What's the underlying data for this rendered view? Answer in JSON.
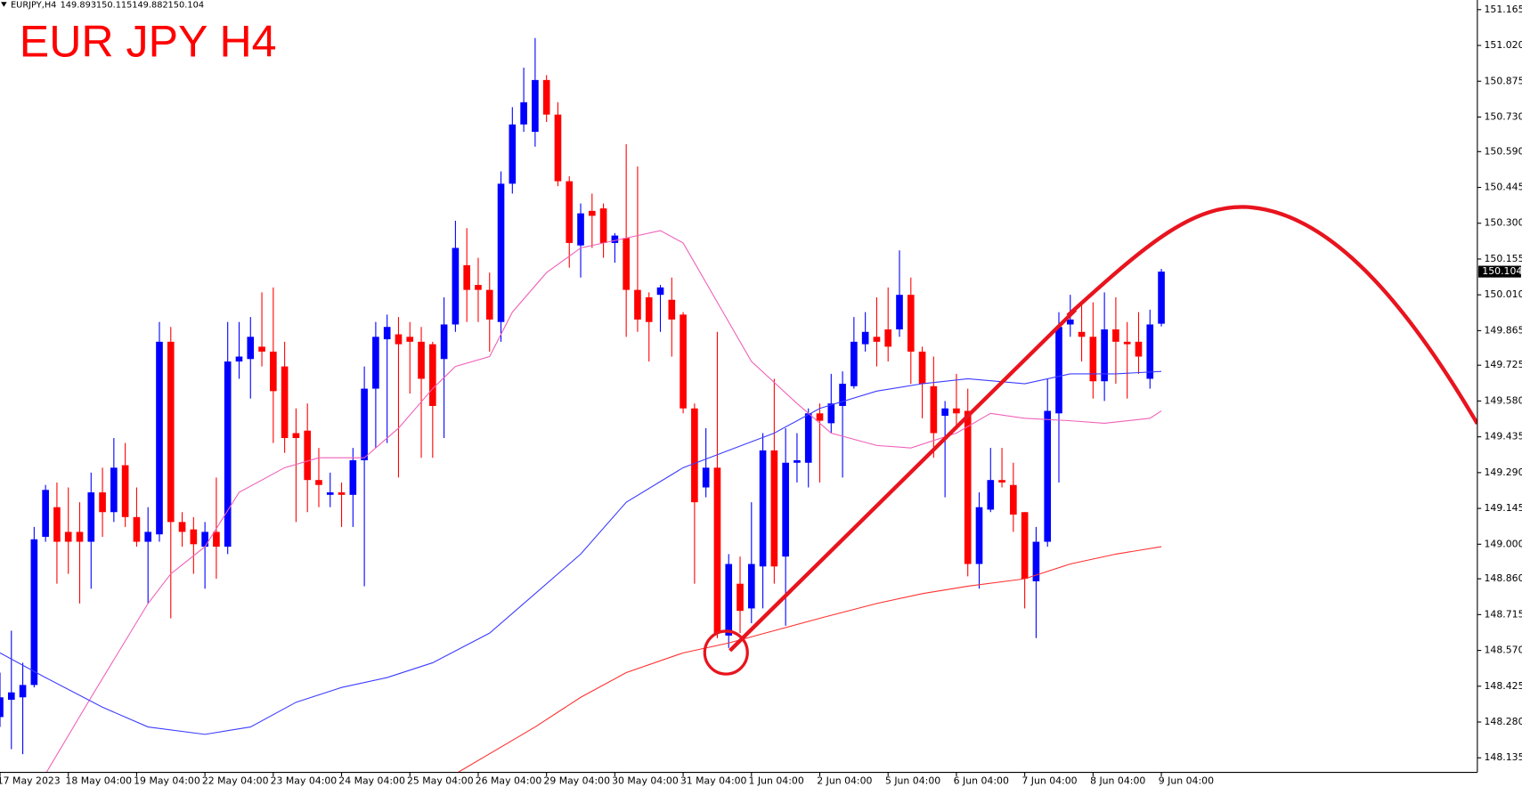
{
  "chart_data": {
    "type": "candlestick",
    "title": "EUR JPY H4",
    "symbol": "EURJPY,H4",
    "up_color": "#0000ff",
    "down_color": "#ff0000",
    "categories": [
      "17 May 2023",
      null,
      null,
      null,
      null,
      null,
      "18 May 04:00",
      null,
      null,
      null,
      null,
      null,
      "19 May 04:00",
      null,
      null,
      null,
      null,
      null,
      "22 May 04:00",
      null,
      null,
      null,
      null,
      null,
      "23 May 04:00",
      null,
      null,
      null,
      null,
      null,
      "24 May 04:00",
      null,
      null,
      null,
      null,
      null,
      "25 May 04:00",
      null,
      null,
      null,
      null,
      null,
      "26 May 04:00",
      null,
      null,
      null,
      null,
      null,
      "29 May 04:00",
      null,
      null,
      null,
      null,
      null,
      "30 May 04:00",
      null,
      null,
      null,
      null,
      null,
      "31 May 04:00",
      null,
      null,
      null,
      null,
      null,
      "1 Jun 04:00",
      null,
      null,
      null,
      null,
      null,
      "2 Jun 04:00",
      null,
      null,
      null,
      null,
      null,
      "5 Jun 04:00",
      null,
      null,
      null,
      null,
      null,
      "6 Jun 04:00",
      null,
      null,
      null,
      null,
      null,
      "7 Jun 04:00",
      null,
      null,
      null,
      null,
      null,
      "8 Jun 04:00",
      null,
      null,
      null,
      null,
      null,
      "9 Jun 04:00"
    ],
    "open": [
      148.3,
      148.37,
      148.38,
      148.43,
      149.03,
      149.15,
      149.05,
      149.05,
      149.01,
      149.21,
      149.13,
      149.32,
      149.11,
      149.01,
      149.04,
      149.82,
      149.09,
      149.06,
      148.99,
      149.05,
      148.99,
      149.74,
      149.75,
      149.8,
      149.78,
      149.72,
      149.45,
      149.46,
      149.26,
      149.2,
      149.21,
      149.2,
      149.34,
      149.63,
      149.83,
      149.85,
      149.84,
      149.82,
      149.81,
      149.75,
      149.89,
      150.13,
      150.05,
      150.03,
      149.9,
      150.46,
      150.7,
      150.67,
      150.88,
      150.74,
      150.47,
      150.21,
      150.35,
      150.36,
      150.22,
      150.24,
      150.03,
      150.0,
      150.01,
      149.99,
      149.93,
      149.55,
      149.23,
      149.31,
      148.63,
      148.84,
      148.74,
      148.91,
      149.38,
      148.95,
      149.33,
      149.33,
      149.53,
      149.49,
      149.56,
      149.64,
      149.81,
      149.84,
      149.87,
      149.87,
      150.01,
      149.78,
      149.64,
      149.52,
      149.55,
      149.54,
      148.92,
      149.14,
      149.26,
      149.24,
      149.13,
      148.85,
      149.01,
      149.53,
      149.89,
      149.86,
      149.84,
      149.66,
      149.87,
      149.82,
      149.82,
      149.67,
      149.893
    ],
    "high": [
      148.48,
      148.65,
      148.52,
      149.07,
      149.24,
      149.25,
      149.23,
      149.17,
      149.29,
      149.31,
      149.43,
      149.41,
      149.23,
      149.15,
      149.9,
      149.88,
      149.13,
      149.11,
      149.09,
      149.27,
      149.9,
      149.9,
      149.92,
      150.02,
      150.04,
      149.82,
      149.55,
      149.57,
      149.39,
      149.29,
      149.25,
      149.39,
      149.72,
      149.9,
      149.93,
      149.92,
      149.9,
      149.88,
      149.82,
      150.0,
      150.31,
      150.28,
      150.16,
      150.1,
      150.51,
      150.77,
      150.93,
      151.05,
      150.9,
      150.79,
      150.49,
      150.38,
      150.42,
      150.38,
      150.26,
      150.62,
      150.53,
      150.02,
      150.05,
      150.08,
      149.94,
      149.57,
      149.47,
      149.86,
      148.96,
      148.95,
      149.17,
      149.45,
      149.67,
      149.47,
      149.45,
      149.55,
      149.57,
      149.69,
      149.7,
      149.92,
      149.94,
      150.0,
      150.04,
      150.19,
      150.08,
      149.8,
      149.76,
      149.58,
      149.69,
      149.63,
      149.21,
      149.39,
      149.39,
      149.33,
      149.13,
      149.07,
      149.67,
      149.94,
      150.01,
      149.98,
      149.98,
      150.02,
      150.0,
      149.9,
      149.94,
      149.95,
      150.115
    ],
    "low": [
      148.26,
      148.17,
      148.15,
      148.42,
      149.01,
      148.84,
      148.88,
      148.76,
      148.82,
      149.03,
      149.09,
      149.07,
      148.99,
      148.76,
      149.01,
      148.7,
      148.99,
      148.88,
      148.82,
      148.86,
      148.96,
      149.67,
      149.59,
      149.72,
      149.41,
      149.37,
      149.09,
      149.13,
      149.15,
      149.15,
      149.07,
      149.07,
      148.83,
      149.39,
      149.41,
      149.27,
      149.61,
      149.35,
      149.35,
      149.43,
      149.86,
      149.9,
      149.9,
      149.78,
      149.82,
      150.42,
      150.67,
      150.61,
      150.71,
      150.45,
      150.12,
      150.08,
      150.2,
      150.16,
      150.14,
      149.84,
      149.86,
      149.74,
      149.86,
      149.76,
      149.53,
      148.84,
      149.19,
      148.62,
      148.58,
      148.64,
      148.68,
      148.74,
      148.84,
      148.67,
      149.25,
      149.23,
      149.25,
      149.45,
      149.27,
      149.63,
      149.78,
      149.72,
      149.74,
      149.84,
      149.65,
      149.51,
      149.35,
      149.19,
      149.47,
      148.87,
      148.82,
      149.13,
      149.23,
      149.05,
      148.74,
      148.62,
      148.99,
      149.25,
      149.84,
      149.74,
      149.59,
      149.58,
      149.65,
      149.59,
      149.69,
      149.63,
      149.882
    ],
    "close": [
      148.38,
      148.4,
      148.43,
      149.02,
      149.22,
      149.01,
      149.01,
      149.01,
      149.21,
      149.13,
      149.31,
      149.11,
      149.01,
      149.05,
      149.82,
      149.09,
      149.05,
      149.0,
      149.05,
      148.99,
      149.74,
      149.76,
      149.84,
      149.78,
      149.62,
      149.43,
      149.43,
      149.26,
      149.24,
      149.21,
      149.2,
      149.34,
      149.63,
      149.84,
      149.88,
      149.81,
      149.82,
      149.67,
      149.56,
      149.89,
      150.2,
      150.03,
      150.03,
      149.91,
      150.46,
      150.7,
      150.79,
      150.88,
      150.74,
      150.47,
      150.22,
      150.34,
      150.33,
      150.22,
      150.25,
      150.03,
      149.91,
      149.9,
      150.04,
      149.91,
      149.55,
      149.17,
      149.31,
      148.64,
      148.92,
      148.73,
      148.92,
      149.38,
      148.91,
      149.33,
      149.34,
      149.53,
      149.5,
      149.57,
      149.65,
      149.82,
      149.86,
      149.82,
      149.8,
      150.01,
      149.78,
      149.65,
      149.45,
      149.55,
      149.53,
      148.92,
      149.15,
      149.26,
      149.25,
      149.12,
      148.86,
      149.01,
      149.54,
      149.88,
      149.91,
      149.84,
      149.66,
      149.87,
      149.82,
      149.81,
      149.76,
      149.89,
      150.104
    ],
    "indicators": [
      {
        "color": "#f060b8",
        "x": [
          4,
          8,
          13,
          15,
          18,
          21,
          25,
          28,
          32,
          35,
          38,
          40,
          43,
          45,
          48,
          51,
          55,
          58,
          60,
          63,
          66,
          70,
          73,
          77,
          80,
          84,
          87,
          90,
          94,
          97,
          101,
          102
        ],
        "values": [
          148.07,
          148.38,
          148.76,
          148.88,
          148.99,
          149.21,
          149.31,
          149.35,
          149.35,
          149.47,
          149.63,
          149.72,
          149.76,
          149.94,
          150.1,
          150.2,
          150.24,
          150.27,
          150.22,
          149.98,
          149.74,
          149.57,
          149.45,
          149.4,
          149.39,
          149.45,
          149.53,
          149.51,
          149.5,
          149.49,
          149.51,
          149.54
        ]
      },
      {
        "color": "#3c3cff",
        "x": [
          0,
          4,
          9,
          13,
          18,
          22,
          26,
          30,
          34,
          38,
          43,
          47,
          51,
          55,
          60,
          64,
          68,
          72,
          77,
          81,
          85,
          90,
          94,
          98,
          102
        ],
        "values": [
          148.56,
          148.46,
          148.34,
          148.26,
          148.23,
          148.26,
          148.36,
          148.42,
          148.46,
          148.52,
          148.64,
          148.8,
          148.96,
          149.17,
          149.31,
          149.38,
          149.45,
          149.55,
          149.62,
          149.65,
          149.67,
          149.65,
          149.69,
          149.69,
          149.7
        ]
      },
      {
        "color": "#ff3030",
        "x": [
          40,
          47,
          51,
          55,
          60,
          64,
          68,
          72,
          77,
          81,
          85,
          90,
          94,
          98,
          102
        ],
        "values": [
          148.07,
          148.26,
          148.38,
          148.48,
          148.56,
          148.6,
          148.65,
          148.7,
          148.76,
          148.8,
          148.83,
          148.86,
          148.92,
          148.96,
          148.99
        ]
      }
    ],
    "ylim": [
      148.076,
      151.204
    ],
    "yticks": [
      151.165,
      {
        "value": 151.02,
        "label": "151.020"
      },
      150.875,
      {
        "value": 150.73,
        "label": "150.730"
      },
      {
        "value": 150.59,
        "label": "150.590"
      },
      150.445,
      {
        "value": 150.3,
        "label": "150.300"
      },
      150.155,
      {
        "value": 150.01,
        "label": "150.010"
      },
      149.865,
      149.725,
      {
        "value": 149.58,
        "label": "149.580"
      },
      149.435,
      {
        "value": 149.29,
        "label": "149.290"
      },
      149.145,
      {
        "value": 149,
        "label": "149.000"
      },
      {
        "value": 148.86,
        "label": "148.860"
      },
      148.715,
      {
        "value": 148.57,
        "label": "148.570"
      },
      148.425,
      {
        "value": 148.28,
        "label": "148.280"
      },
      148.135
    ]
  }
}
